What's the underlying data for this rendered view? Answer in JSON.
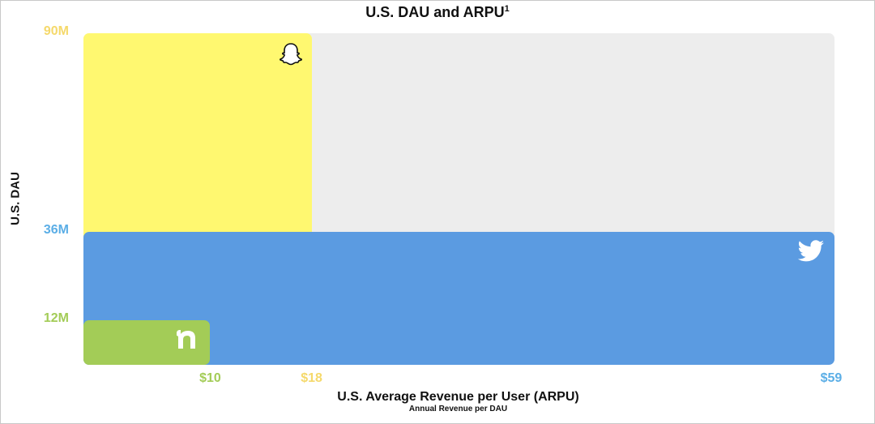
{
  "chart_data": {
    "type": "area",
    "title": "U.S. DAU and ARPU",
    "title_superscript": "1",
    "xlabel": "U.S. Average Revenue per User (ARPU)",
    "xsublabel": "Annual Revenue per DAU",
    "ylabel": "U.S. DAU",
    "series": [
      {
        "logo": "nextdoor-logo-icon",
        "dau": 12,
        "arpu": 10,
        "dau_label": "12M",
        "arpu_label": "$10",
        "color": "#A3CC57"
      },
      {
        "logo": "snapchat-ghost-icon",
        "dau": 90,
        "arpu": 18,
        "dau_label": "90M",
        "arpu_label": "$18",
        "color": "#FFF870"
      },
      {
        "logo": "twitter-bird-icon",
        "dau": 36,
        "arpu": 59,
        "dau_label": "36M",
        "arpu_label": "$59",
        "color": "#5B9BE1"
      }
    ],
    "background_color": "#EDEDED",
    "tick_colors": {
      "12M": "#A3CC57",
      "36M": "#5BAEE6",
      "90M": "#F5D96B",
      "$10": "#A3CC57",
      "$18": "#F5D96B",
      "$59": "#5BAEE6"
    }
  }
}
